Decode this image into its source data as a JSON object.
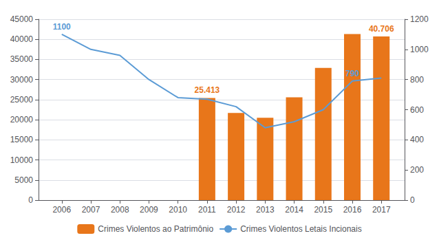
{
  "chart_data": {
    "type": "bar",
    "x": [
      2006,
      2007,
      2008,
      2009,
      2010,
      2011,
      2012,
      2013,
      2014,
      2015,
      2016,
      2017
    ],
    "xlim": [
      2005.2,
      2017.8
    ],
    "xticks": [
      2006,
      2007,
      2008,
      2009,
      2010,
      2011,
      2012,
      2013,
      2014,
      2015,
      2016,
      2017
    ],
    "ylim": [
      0,
      45000
    ],
    "yticks": [
      0,
      5000,
      10000,
      15000,
      20000,
      25000,
      30000,
      35000,
      40000,
      45000
    ],
    "y2lim": [
      0,
      1200
    ],
    "y2ticks": [
      0,
      200,
      400,
      600,
      800,
      1000,
      1200
    ],
    "grid": "y",
    "legend": "bottom",
    "series": [
      {
        "name": "Crimes Violentos ao Patrimônio",
        "type": "bar",
        "color": "#E8761A",
        "values": [
          null,
          null,
          null,
          null,
          null,
          25413,
          21700,
          20500,
          25600,
          32900,
          41300,
          40706
        ]
      },
      {
        "name": "Crimes Violentos Letais Incionais",
        "type": "line",
        "axis": "y2",
        "color": "#5B9BD5",
        "values": [
          1100,
          1000,
          960,
          800,
          680,
          670,
          620,
          480,
          520,
          600,
          790,
          810
        ]
      }
    ],
    "annotations": [
      {
        "text": "1100",
        "x": 2006,
        "series": "Crimes Violentos Letais Incionais"
      },
      {
        "text": "25.413",
        "x": 2011,
        "series": "Crimes Violentos ao Patrimônio"
      },
      {
        "text": "790",
        "x": 2016,
        "series": "Crimes Violentos Letais Incionais"
      },
      {
        "text": "40.706",
        "x": 2017,
        "series": "Crimes Violentos ao Patrimônio"
      }
    ]
  }
}
